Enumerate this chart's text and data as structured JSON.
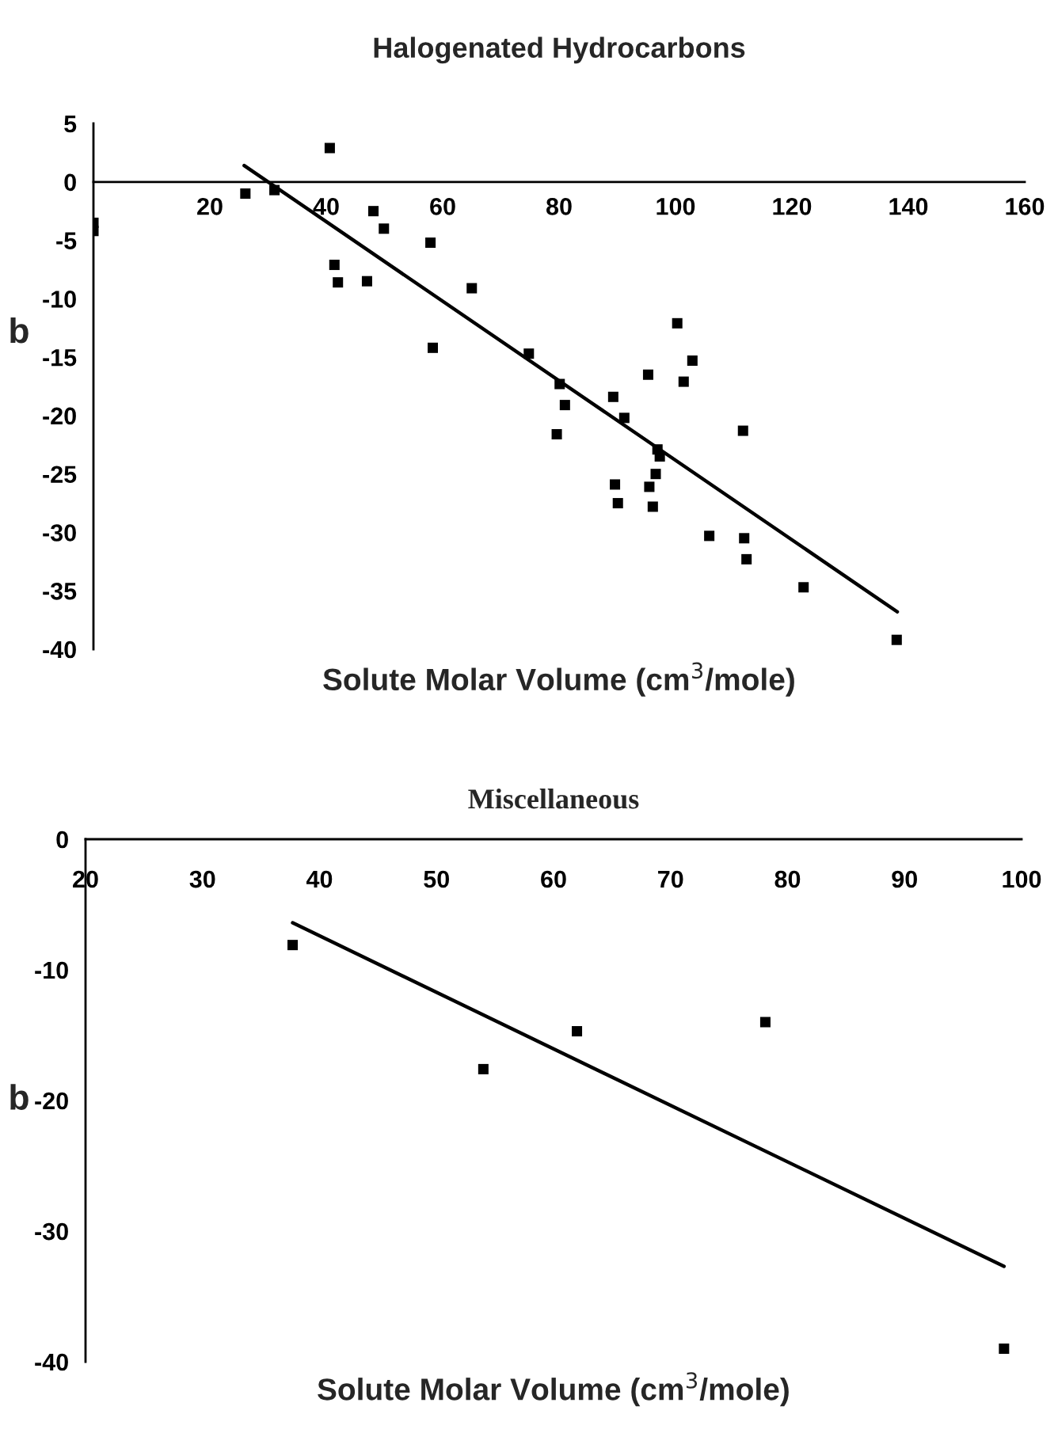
{
  "chart_data": [
    {
      "type": "scatter",
      "title": "Halogenated Hydrocarbons",
      "xlabel": "Solute Molar Volume (cm$^{3}$/mole)",
      "ylabel": "b",
      "xlim": [
        0,
        160
      ],
      "ylim": [
        -40,
        5
      ],
      "xticks": [
        {
          "value": 0,
          "label": null
        },
        20,
        40,
        60,
        80,
        100,
        120,
        140,
        160
      ],
      "yticks": [
        5,
        0,
        -5,
        -10,
        -15,
        -20,
        -25,
        -30,
        -35,
        -40
      ],
      "grid": false,
      "series": [
        {
          "marker": "square",
          "color": "#000000",
          "x": [
            0,
            0,
            26.1,
            31.1,
            40.6,
            48.1,
            49.9,
            41.4,
            42.0,
            47.0,
            57.9,
            58.3,
            65.0,
            74.8,
            80.1,
            81.0,
            79.6,
            89.3,
            91.2,
            89.6,
            90.1,
            95.3,
            100.3,
            101.4,
            102.9,
            96.9,
            97.3,
            96.6,
            95.5,
            96.1,
            111.6,
            105.8,
            111.8,
            112.2,
            122.0,
            138.0
          ],
          "values": [
            -3.5,
            -4.2,
            -1.0,
            -0.7,
            2.9,
            -2.5,
            -4.0,
            -7.1,
            -8.6,
            -8.5,
            -5.2,
            -14.2,
            -9.1,
            -14.7,
            -17.3,
            -19.1,
            -21.6,
            -18.4,
            -20.2,
            -25.9,
            -27.5,
            -16.5,
            -12.1,
            -17.1,
            -15.3,
            -22.9,
            -23.5,
            -25.0,
            -26.1,
            -27.8,
            -21.3,
            -30.3,
            -30.5,
            -32.3,
            -34.7,
            -39.2
          ]
        },
        {
          "type": "line",
          "color": "#000000",
          "x": [
            25.9,
            138.1
          ],
          "values": [
            1.4,
            -36.8
          ]
        }
      ]
    },
    {
      "type": "scatter",
      "title": "Miscellaneous",
      "xlabel": "Solute Molar Volume (cm$^{3}$/mole)",
      "ylabel": "b",
      "xlim": [
        20,
        100
      ],
      "ylim": [
        -40,
        0
      ],
      "xticks": [
        20,
        30,
        40,
        50,
        60,
        70,
        80,
        90,
        100
      ],
      "yticks": [
        0,
        -10,
        -20,
        -30,
        -40
      ],
      "grid": false,
      "series": [
        {
          "marker": "square",
          "color": "#000000",
          "x": [
            37.7,
            54.0,
            62.0,
            78.1,
            98.5
          ],
          "values": [
            -8.1,
            -17.6,
            -14.7,
            -14.0,
            -39.0
          ]
        },
        {
          "type": "line",
          "color": "#000000",
          "x": [
            37.7,
            98.5
          ],
          "values": [
            -6.4,
            -32.7
          ]
        }
      ]
    }
  ]
}
